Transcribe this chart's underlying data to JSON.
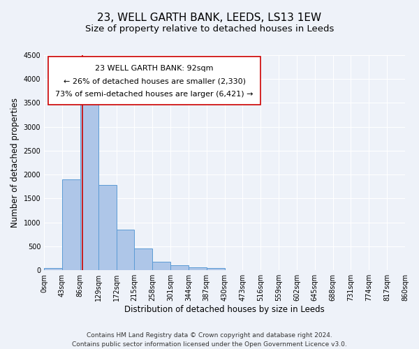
{
  "title": "23, WELL GARTH BANK, LEEDS, LS13 1EW",
  "subtitle": "Size of property relative to detached houses in Leeds",
  "xlabel": "Distribution of detached houses by size in Leeds",
  "ylabel": "Number of detached properties",
  "bin_edges": [
    0,
    43,
    86,
    129,
    172,
    215,
    258,
    301,
    344,
    387,
    430,
    473,
    516,
    559,
    602,
    645,
    688,
    731,
    774,
    817,
    860
  ],
  "bar_heights": [
    50,
    1900,
    3500,
    1780,
    850,
    460,
    175,
    100,
    60,
    50,
    0,
    0,
    0,
    0,
    0,
    0,
    0,
    0,
    0,
    0
  ],
  "bar_color": "#aec6e8",
  "bar_edge_color": "#5b9bd5",
  "vline_x": 92,
  "vline_color": "#cc0000",
  "ylim": [
    0,
    4500
  ],
  "yticks": [
    0,
    500,
    1000,
    1500,
    2000,
    2500,
    3000,
    3500,
    4000,
    4500
  ],
  "xtick_labels": [
    "0sqm",
    "43sqm",
    "86sqm",
    "129sqm",
    "172sqm",
    "215sqm",
    "258sqm",
    "301sqm",
    "344sqm",
    "387sqm",
    "430sqm",
    "473sqm",
    "516sqm",
    "559sqm",
    "602sqm",
    "645sqm",
    "688sqm",
    "731sqm",
    "774sqm",
    "817sqm",
    "860sqm"
  ],
  "annotation_line1": "23 WELL GARTH BANK: 92sqm",
  "annotation_line2": "← 26% of detached houses are smaller (2,330)",
  "annotation_line3": "73% of semi-detached houses are larger (6,421) →",
  "bg_color": "#eef2f9",
  "grid_color": "#ffffff",
  "footer_line1": "Contains HM Land Registry data © Crown copyright and database right 2024.",
  "footer_line2": "Contains public sector information licensed under the Open Government Licence v3.0.",
  "title_fontsize": 11,
  "subtitle_fontsize": 9.5,
  "axis_label_fontsize": 8.5,
  "tick_fontsize": 7,
  "annotation_fontsize": 8,
  "footer_fontsize": 6.5
}
